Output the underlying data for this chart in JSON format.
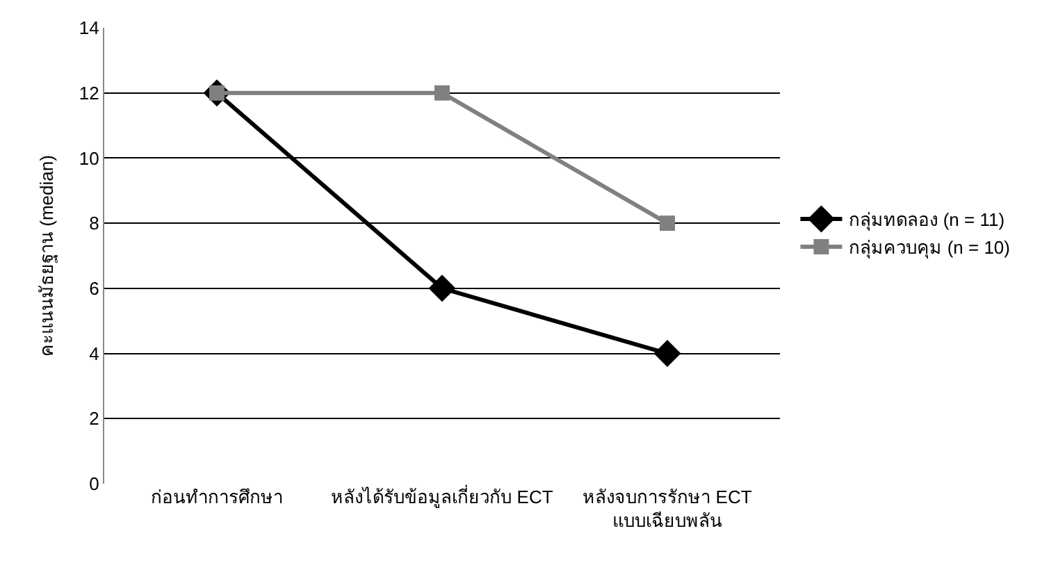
{
  "chart_data": {
    "type": "line",
    "ylabel": "คะแนนมัธยฐาน (median)",
    "categories": [
      "ก่อนทำการศึกษา",
      "หลังได้รับข้อมูลเกี่ยวกับ ECT",
      "หลังจบการรักษา ECT\nแบบเฉียบพลัน"
    ],
    "series": [
      {
        "name": "กลุ่มทดลอง (n = 11)",
        "color": "#000000",
        "values": [
          12,
          6,
          4
        ],
        "marker": "diamond"
      },
      {
        "name": "กลุ่มควบคุม (n = 10)",
        "color": "#808080",
        "values": [
          12,
          12,
          8
        ],
        "marker": "square"
      }
    ],
    "ylim": [
      0,
      14
    ],
    "yticks": [
      0,
      2,
      4,
      6,
      8,
      10,
      12,
      14
    ],
    "grid": "y",
    "legend": "right",
    "line_style": "solid"
  }
}
